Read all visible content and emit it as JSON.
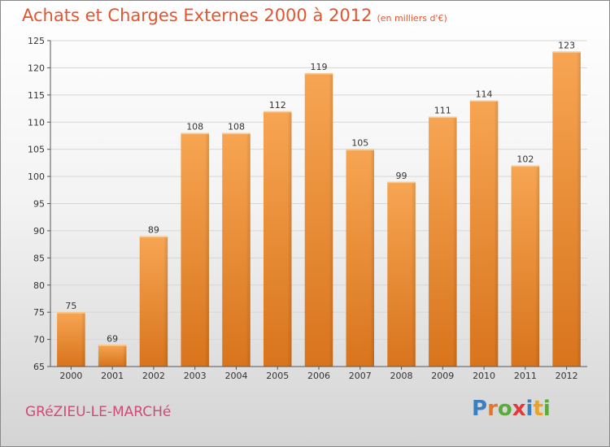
{
  "header": {
    "title": "Achats et Charges Externes 2000 à 2012",
    "subtitle": "(en milliers d'€)"
  },
  "footer": {
    "commune": "GRéZIEU-LE-MARCHé",
    "logo_letters": [
      "P",
      "r",
      "o",
      "x",
      "i",
      "t",
      "i"
    ],
    "logo_colors": [
      "#3a7fc1",
      "#e8742a",
      "#5aab3a",
      "#e23a3a",
      "#3a7fc1",
      "#e8a12a",
      "#5aab3a"
    ]
  },
  "colors": {
    "bar_light": "#f7a553",
    "bar_dark": "#d8741c",
    "title": "#e4542e",
    "commune": "#d04a7a"
  },
  "chart_data": {
    "type": "bar",
    "title": "Achats et Charges Externes 2000 à 2012",
    "subtitle": "(en milliers d'€)",
    "categories": [
      "2000",
      "2001",
      "2002",
      "2003",
      "2004",
      "2005",
      "2006",
      "2007",
      "2008",
      "2009",
      "2010",
      "2011",
      "2012"
    ],
    "values": [
      75,
      69,
      89,
      108,
      108,
      112,
      119,
      105,
      99,
      111,
      114,
      102,
      123
    ],
    "ylim": [
      65,
      125
    ],
    "yticks": [
      65,
      70,
      75,
      80,
      85,
      90,
      95,
      100,
      105,
      110,
      115,
      120,
      125
    ],
    "grid": true
  }
}
